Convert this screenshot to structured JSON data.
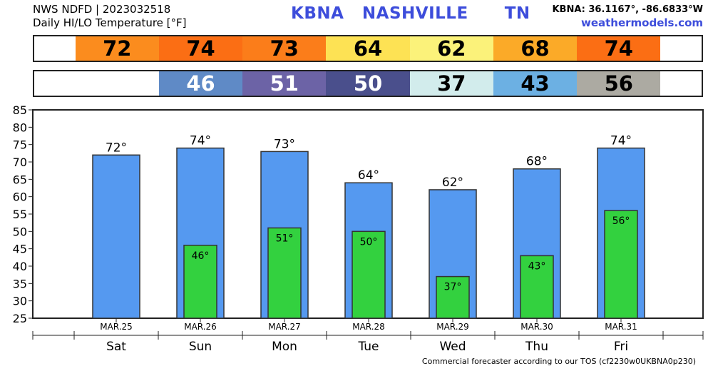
{
  "header": {
    "line1": "NWS NDFD | 2023032518",
    "line2": "Daily HI/LO Temperature [°F]",
    "title": "KBNA   NASHVILLE      TN",
    "coords": "KBNA: 36.1167°, -86.6833°W",
    "site": "weathermodels.com"
  },
  "strips": {
    "hi": [
      {
        "text": "72",
        "bg": "#fb8c1e",
        "fg": "#000000"
      },
      {
        "text": "74",
        "bg": "#fb6e14",
        "fg": "#000000"
      },
      {
        "text": "73",
        "bg": "#fb7d1a",
        "fg": "#000000"
      },
      {
        "text": "64",
        "bg": "#fde254",
        "fg": "#000000"
      },
      {
        "text": "62",
        "bg": "#fbf27a",
        "fg": "#000000"
      },
      {
        "text": "68",
        "bg": "#fbaa28",
        "fg": "#000000"
      },
      {
        "text": "74",
        "bg": "#fb6e14",
        "fg": "#000000"
      }
    ],
    "lo": [
      {
        "text": "",
        "bg": "#ffffff",
        "fg": "#000000"
      },
      {
        "text": "46",
        "bg": "#5f8ac6",
        "fg": "#ffffff"
      },
      {
        "text": "51",
        "bg": "#6c63a6",
        "fg": "#ffffff"
      },
      {
        "text": "50",
        "bg": "#4a4f8c",
        "fg": "#ffffff"
      },
      {
        "text": "37",
        "bg": "#d2ecec",
        "fg": "#000000"
      },
      {
        "text": "43",
        "bg": "#6cb0e3",
        "fg": "#000000"
      },
      {
        "text": "56",
        "bg": "#acaaa2",
        "fg": "#000000"
      }
    ]
  },
  "chart_data": {
    "type": "bar",
    "title": "Daily HI/LO Temperature [°F]",
    "ylim": [
      25,
      85
    ],
    "yticks": [
      25,
      30,
      35,
      40,
      45,
      50,
      55,
      60,
      65,
      70,
      75,
      80,
      85
    ],
    "grid": false,
    "dates": [
      "MAR.25",
      "MAR.26",
      "MAR.27",
      "MAR.28",
      "MAR.29",
      "MAR.30",
      "MAR.31"
    ],
    "days": [
      "Sat",
      "Sun",
      "Mon",
      "Tue",
      "Wed",
      "Thu",
      "Fri"
    ],
    "series": [
      {
        "values": [
          72,
          74,
          73,
          64,
          62,
          68,
          74
        ],
        "labels": [
          "72°",
          "74°",
          "73°",
          "64°",
          "62°",
          "68°",
          "74°"
        ],
        "color": "#5599f0"
      },
      {
        "values": [
          null,
          46,
          51,
          50,
          37,
          43,
          56
        ],
        "labels": [
          "",
          "46°",
          "51°",
          "50°",
          "37°",
          "43°",
          "56°"
        ],
        "color": "#33d13f"
      }
    ]
  },
  "footer": "Commercial forecaster according to our TOS (cf2230w0UKBNA0p230)"
}
